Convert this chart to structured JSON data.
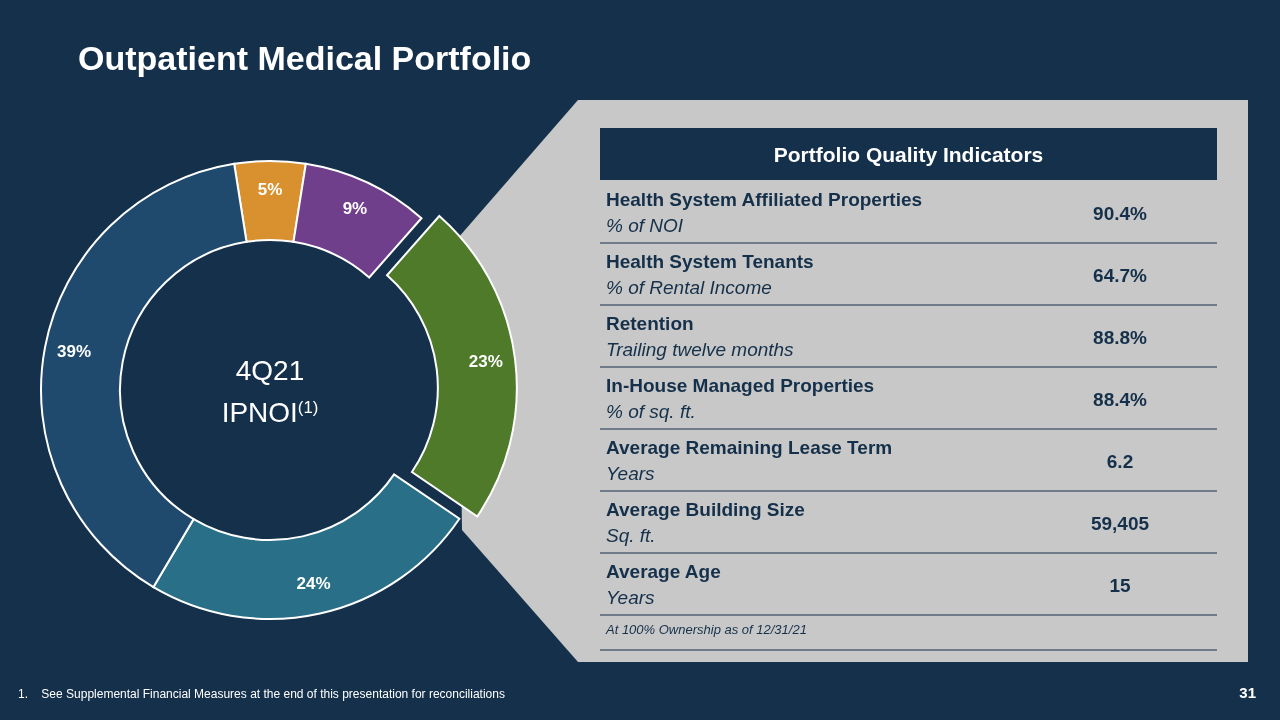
{
  "chart_data": [
    {
      "type": "donut",
      "title": "Outpatient Medical Portfolio",
      "categories": [
        null,
        null,
        null,
        null,
        null
      ],
      "values": [
        5,
        9,
        23,
        24,
        39
      ],
      "colors": [
        "#d9912f",
        "#6f3f8c",
        "#4e7a2a",
        "#2a6f88",
        "#1f4a6e"
      ],
      "value_labels": [
        "5%",
        "9%",
        "23%",
        "24%",
        "39%"
      ],
      "annotations": [
        "4Q21",
        "IPNOI$^{(1)}$",
        "1.    See Supplemental Financial Measures at the end of this presentation for reconciliations",
        "31"
      ]
    },
    {
      "type": "other",
      "title": "Portfolio Quality Indicators",
      "categories": [
        "Health System Affiliated Properties",
        "Health System Tenants",
        "Retention",
        "In-House Managed Properties",
        "Average Remaining Lease Term",
        "Average Building Size",
        "Average Age"
      ],
      "value_labels": [
        "90.4%",
        "64.7%",
        "88.8%",
        "88.4%",
        "6.2",
        "59,405",
        "15"
      ],
      "annotations": [
        "% of NOI",
        "% of Rental Income",
        "Trailing twelve months",
        "% of sq. ft.",
        "Years",
        "Sq. ft.",
        "Years",
        "At 100% Ownership as of 12/31/21"
      ]
    }
  ]
}
